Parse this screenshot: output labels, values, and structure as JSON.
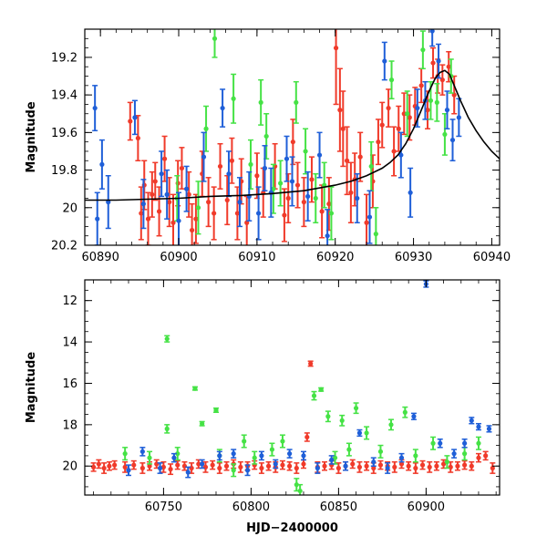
{
  "chart_data": [
    {
      "type": "scatter",
      "title": "",
      "xlabel": "",
      "ylabel": "Magnitude",
      "xlim": [
        60888,
        60941
      ],
      "ylim": [
        20.2,
        19.05
      ],
      "y_inverted": true,
      "x_ticks": [
        60890,
        60900,
        60910,
        60920,
        60930,
        60940
      ],
      "y_ticks": [
        19.2,
        19.4,
        19.6,
        19.8,
        20,
        20.2
      ],
      "x_tick_labels": [
        "60890",
        "60900",
        "60910",
        "60920",
        "60930",
        "60940"
      ],
      "y_tick_labels": [
        "19.2",
        "19.4",
        "19.6",
        "19.8",
        "20",
        "20.2"
      ],
      "grid": false,
      "legend": "none",
      "colors": {
        "red": "#f03a2a",
        "green": "#45e245",
        "blue": "#1f5fd8",
        "model": "#000000"
      },
      "series": [
        {
          "color": "red",
          "x": [
            60893.8,
            60894.8,
            60895.2,
            60895.6,
            60896.1,
            60896.6,
            60897.0,
            60897.5,
            60898.2,
            60898.8,
            60899.3,
            60899.9,
            60900.4,
            60901.3,
            60901.7,
            60902.2,
            60903.0,
            60903.8,
            60904.5,
            60905.3,
            60906.2,
            60906.8,
            60907.5,
            60908.0,
            60908.7,
            60910.0,
            60910.8,
            60912.3,
            60913.5,
            60914.0,
            60914.6,
            60915.2,
            60916.0,
            60917.0,
            60918.3,
            60919.2,
            60920.1,
            60920.6,
            60921.0,
            60921.5,
            60922.0,
            60922.5,
            60923.2,
            60924.0,
            60924.8,
            60925.5,
            60926.0,
            60926.8,
            60927.5,
            60928.1,
            60928.8,
            60929.5,
            60930.2,
            60931.0,
            60931.8,
            60932.5,
            60933.1,
            60933.7,
            60934.5,
            60935.2
          ],
          "y": [
            19.54,
            19.63,
            20.03,
            19.88,
            20.06,
            19.93,
            19.86,
            20.02,
            19.74,
            19.97,
            20.08,
            19.87,
            19.79,
            19.93,
            20.12,
            20.06,
            19.82,
            19.97,
            20.03,
            19.78,
            19.96,
            19.75,
            20.03,
            19.86,
            20.08,
            19.83,
            19.92,
            19.78,
            20.04,
            19.95,
            19.65,
            19.88,
            19.97,
            19.85,
            20.02,
            19.98,
            19.15,
            19.48,
            19.58,
            19.75,
            19.92,
            19.85,
            19.73,
            20.08,
            19.86,
            19.65,
            19.56,
            19.47,
            19.7,
            19.58,
            19.5,
            19.52,
            19.46,
            19.35,
            19.48,
            19.23,
            19.3,
            19.32,
            19.25,
            19.4
          ],
          "yerr": [
            0.1,
            0.12,
            0.14,
            0.13,
            0.14,
            0.12,
            0.1,
            0.13,
            0.12,
            0.13,
            0.15,
            0.12,
            0.11,
            0.12,
            0.14,
            0.13,
            0.12,
            0.13,
            0.14,
            0.12,
            0.13,
            0.12,
            0.14,
            0.12,
            0.14,
            0.12,
            0.13,
            0.12,
            0.14,
            0.13,
            0.12,
            0.12,
            0.13,
            0.12,
            0.14,
            0.14,
            0.3,
            0.22,
            0.2,
            0.18,
            0.16,
            0.14,
            0.13,
            0.15,
            0.14,
            0.12,
            0.12,
            0.1,
            0.13,
            0.12,
            0.11,
            0.12,
            0.1,
            0.09,
            0.1,
            0.08,
            0.09,
            0.08,
            0.08,
            0.1
          ]
        },
        {
          "color": "green",
          "x": [
            60899.8,
            60902.5,
            60903.5,
            60904.6,
            60907.0,
            60909.2,
            60910.5,
            60911.2,
            60912.1,
            60913.0,
            60915.0,
            60916.2,
            60917.5,
            60918.6,
            60919.5,
            60924.6,
            60925.2,
            60927.2,
            60929.2,
            60931.2,
            60932.2,
            60933.0,
            60934.0,
            60934.8
          ],
          "y": [
            19.95,
            20.0,
            19.58,
            19.1,
            19.42,
            19.77,
            19.44,
            19.62,
            19.9,
            19.87,
            19.44,
            19.7,
            19.95,
            19.88,
            20.03,
            19.78,
            20.14,
            19.32,
            19.5,
            19.16,
            19.43,
            19.44,
            19.61,
            19.3
          ],
          "yerr": [
            0.12,
            0.14,
            0.12,
            0.1,
            0.13,
            0.13,
            0.12,
            0.12,
            0.13,
            0.12,
            0.11,
            0.12,
            0.13,
            0.12,
            0.14,
            0.13,
            0.14,
            0.1,
            0.12,
            0.1,
            0.1,
            0.1,
            0.11,
            0.09
          ]
        },
        {
          "color": "blue",
          "x": [
            60889.3,
            60889.6,
            60890.2,
            60891.0,
            60894.4,
            60895.5,
            60897.8,
            60898.5,
            60900.0,
            60901.0,
            60903.2,
            60905.6,
            60906.4,
            60907.8,
            60909.0,
            60910.2,
            60911.0,
            60911.8,
            60913.8,
            60914.5,
            60916.5,
            60918.0,
            60919.0,
            60922.8,
            60924.4,
            60926.3,
            60928.4,
            60929.6,
            60930.5,
            60931.5,
            60932.4,
            60933.2,
            60934.3,
            60935.0,
            60935.8
          ],
          "y": [
            19.47,
            20.06,
            19.77,
            19.97,
            19.52,
            19.98,
            19.82,
            19.93,
            20.07,
            19.9,
            19.73,
            19.47,
            19.82,
            19.97,
            19.94,
            20.03,
            19.79,
            19.92,
            19.74,
            19.86,
            19.94,
            19.72,
            20.15,
            19.95,
            20.05,
            19.22,
            19.72,
            19.92,
            19.47,
            19.43,
            19.06,
            19.22,
            19.48,
            19.64,
            19.52
          ],
          "yerr": [
            0.12,
            0.14,
            0.13,
            0.14,
            0.09,
            0.13,
            0.12,
            0.13,
            0.15,
            0.12,
            0.13,
            0.1,
            0.12,
            0.13,
            0.13,
            0.14,
            0.12,
            0.13,
            0.12,
            0.13,
            0.13,
            0.12,
            0.14,
            0.13,
            0.14,
            0.1,
            0.12,
            0.13,
            0.1,
            0.1,
            0.08,
            0.09,
            0.1,
            0.11,
            0.1
          ]
        }
      ],
      "model_curve": {
        "color": "model",
        "x": [
          60888,
          60892,
          60896,
          60900,
          60904,
          60908,
          60912,
          60916,
          60920,
          60922,
          60924,
          60926,
          60927,
          60928,
          60929,
          60930,
          60931,
          60932,
          60932.8,
          60933.4,
          60934.0,
          60934.6,
          60935.2,
          60936,
          60937,
          60938,
          60939,
          60940,
          60941
        ],
        "y": [
          19.96,
          19.96,
          19.955,
          19.95,
          19.94,
          19.935,
          19.925,
          19.91,
          19.88,
          19.86,
          19.83,
          19.79,
          19.76,
          19.72,
          19.66,
          19.58,
          19.48,
          19.38,
          19.31,
          19.28,
          19.27,
          19.29,
          19.35,
          19.43,
          19.52,
          19.59,
          19.65,
          19.7,
          19.74
        ]
      }
    },
    {
      "type": "scatter",
      "title": "",
      "xlabel": "HJD−2400000",
      "ylabel": "Magnitude",
      "xlim": [
        60705,
        60942
      ],
      "ylim": [
        21.4,
        11.0
      ],
      "y_inverted": true,
      "x_ticks": [
        60750,
        60800,
        60850,
        60900
      ],
      "y_ticks": [
        12,
        14,
        16,
        18,
        20
      ],
      "x_tick_labels": [
        "60750",
        "60800",
        "60850",
        "60900"
      ],
      "y_tick_labels": [
        "12",
        "14",
        "16",
        "18",
        "20"
      ],
      "grid": false,
      "legend": "none",
      "colors": {
        "red": "#f03a2a",
        "green": "#45e245",
        "blue": "#1f5fd8"
      },
      "series": [
        {
          "color": "red",
          "x": [
            60710,
            60713,
            60716,
            60719,
            60722,
            60728,
            60733,
            60738,
            60742,
            60746,
            60750,
            60754,
            60758,
            60762,
            60766,
            60770,
            60774,
            60778,
            60782,
            60786,
            60790,
            60794,
            60798,
            60802,
            60806,
            60810,
            60814,
            60818,
            60822,
            60826,
            60830,
            60832,
            60834,
            60838,
            60842,
            60846,
            60850,
            60854,
            60858,
            60862,
            60866,
            60870,
            60874,
            60878,
            60882,
            60886,
            60890,
            60894,
            60898,
            60902,
            60906,
            60910,
            60914,
            60918,
            60922,
            60926,
            60930,
            60934,
            60938
          ],
          "y": [
            20.05,
            19.9,
            20.1,
            20.0,
            19.95,
            20.05,
            19.95,
            20.1,
            20.0,
            19.9,
            20.05,
            20.15,
            19.95,
            20.0,
            20.1,
            19.9,
            20.05,
            19.95,
            20.1,
            20.0,
            19.9,
            20.05,
            20.0,
            19.95,
            20.1,
            20.0,
            20.05,
            19.95,
            20.0,
            20.1,
            19.9,
            18.6,
            15.05,
            20.05,
            20.0,
            19.95,
            20.1,
            20.0,
            19.9,
            20.05,
            20.0,
            20.1,
            19.95,
            20.0,
            20.05,
            19.9,
            20.0,
            20.1,
            19.95,
            20.05,
            20.0,
            19.9,
            20.05,
            20.0,
            19.95,
            20.0,
            19.6,
            19.5,
            20.1
          ],
          "yerr": [
            0.2,
            0.2,
            0.25,
            0.2,
            0.2,
            0.25,
            0.2,
            0.25,
            0.2,
            0.2,
            0.25,
            0.25,
            0.2,
            0.2,
            0.25,
            0.2,
            0.25,
            0.2,
            0.25,
            0.2,
            0.2,
            0.25,
            0.2,
            0.2,
            0.25,
            0.2,
            0.25,
            0.2,
            0.2,
            0.25,
            0.2,
            0.2,
            0.12,
            0.25,
            0.2,
            0.2,
            0.25,
            0.2,
            0.2,
            0.25,
            0.2,
            0.25,
            0.2,
            0.2,
            0.25,
            0.2,
            0.2,
            0.25,
            0.2,
            0.25,
            0.2,
            0.2,
            0.25,
            0.2,
            0.2,
            0.2,
            0.2,
            0.2,
            0.25
          ]
        },
        {
          "color": "green",
          "x": [
            60728,
            60742,
            60752,
            60752,
            60758,
            60768,
            60772,
            60780,
            60782,
            60790,
            60796,
            60802,
            60812,
            60818,
            60826,
            60828,
            60836,
            60840,
            60844,
            60848,
            60852,
            60856,
            60860,
            60866,
            60874,
            60880,
            60888,
            60894,
            60904,
            60912,
            60922,
            60930
          ],
          "y": [
            19.4,
            19.6,
            18.2,
            13.85,
            19.4,
            16.25,
            17.95,
            17.3,
            19.5,
            20.2,
            18.8,
            19.6,
            19.2,
            18.8,
            20.9,
            21.2,
            16.6,
            16.3,
            17.6,
            19.6,
            17.8,
            19.2,
            17.2,
            18.4,
            19.3,
            18.0,
            17.4,
            19.5,
            18.9,
            19.8,
            19.4,
            18.9
          ],
          "yerr": [
            0.3,
            0.3,
            0.2,
            0.15,
            0.3,
            0.08,
            0.1,
            0.1,
            0.3,
            0.3,
            0.3,
            0.3,
            0.3,
            0.3,
            0.3,
            0.3,
            0.2,
            0.08,
            0.25,
            0.3,
            0.25,
            0.3,
            0.25,
            0.3,
            0.3,
            0.25,
            0.25,
            0.3,
            0.3,
            0.3,
            0.3,
            0.3
          ],
          "markers": [
            "bar",
            "bar",
            "bar",
            "bar",
            "bar",
            "bar",
            "bar",
            "bar",
            "bar",
            "bar",
            "bar",
            "bar",
            "bar",
            "bar",
            "bar",
            "bar",
            "bar",
            "dot",
            "bar",
            "bar",
            "bar",
            "bar",
            "bar",
            "bar",
            "bar",
            "bar",
            "bar",
            "bar",
            "bar",
            "bar",
            "bar",
            "bar"
          ]
        },
        {
          "color": "blue",
          "x": [
            60730,
            60738,
            60748,
            60756,
            60764,
            60772,
            60782,
            60790,
            60798,
            60806,
            60814,
            60822,
            60830,
            60838,
            60846,
            60854,
            60862,
            60870,
            60878,
            60886,
            60893,
            60900,
            60908,
            60916,
            60922,
            60926,
            60930,
            60936
          ],
          "y": [
            20.2,
            19.3,
            20.1,
            19.6,
            20.3,
            19.9,
            19.5,
            19.4,
            20.2,
            19.5,
            19.9,
            19.4,
            19.5,
            20.1,
            19.7,
            20.0,
            18.4,
            19.8,
            20.1,
            19.6,
            17.6,
            11.2,
            18.9,
            19.4,
            18.9,
            17.8,
            18.1,
            18.2
          ],
          "yerr": [
            0.25,
            0.2,
            0.25,
            0.2,
            0.25,
            0.2,
            0.2,
            0.2,
            0.25,
            0.2,
            0.2,
            0.2,
            0.2,
            0.25,
            0.2,
            0.2,
            0.15,
            0.2,
            0.25,
            0.2,
            0.15,
            0.15,
            0.2,
            0.2,
            0.2,
            0.15,
            0.15,
            0.15
          ]
        }
      ]
    }
  ]
}
